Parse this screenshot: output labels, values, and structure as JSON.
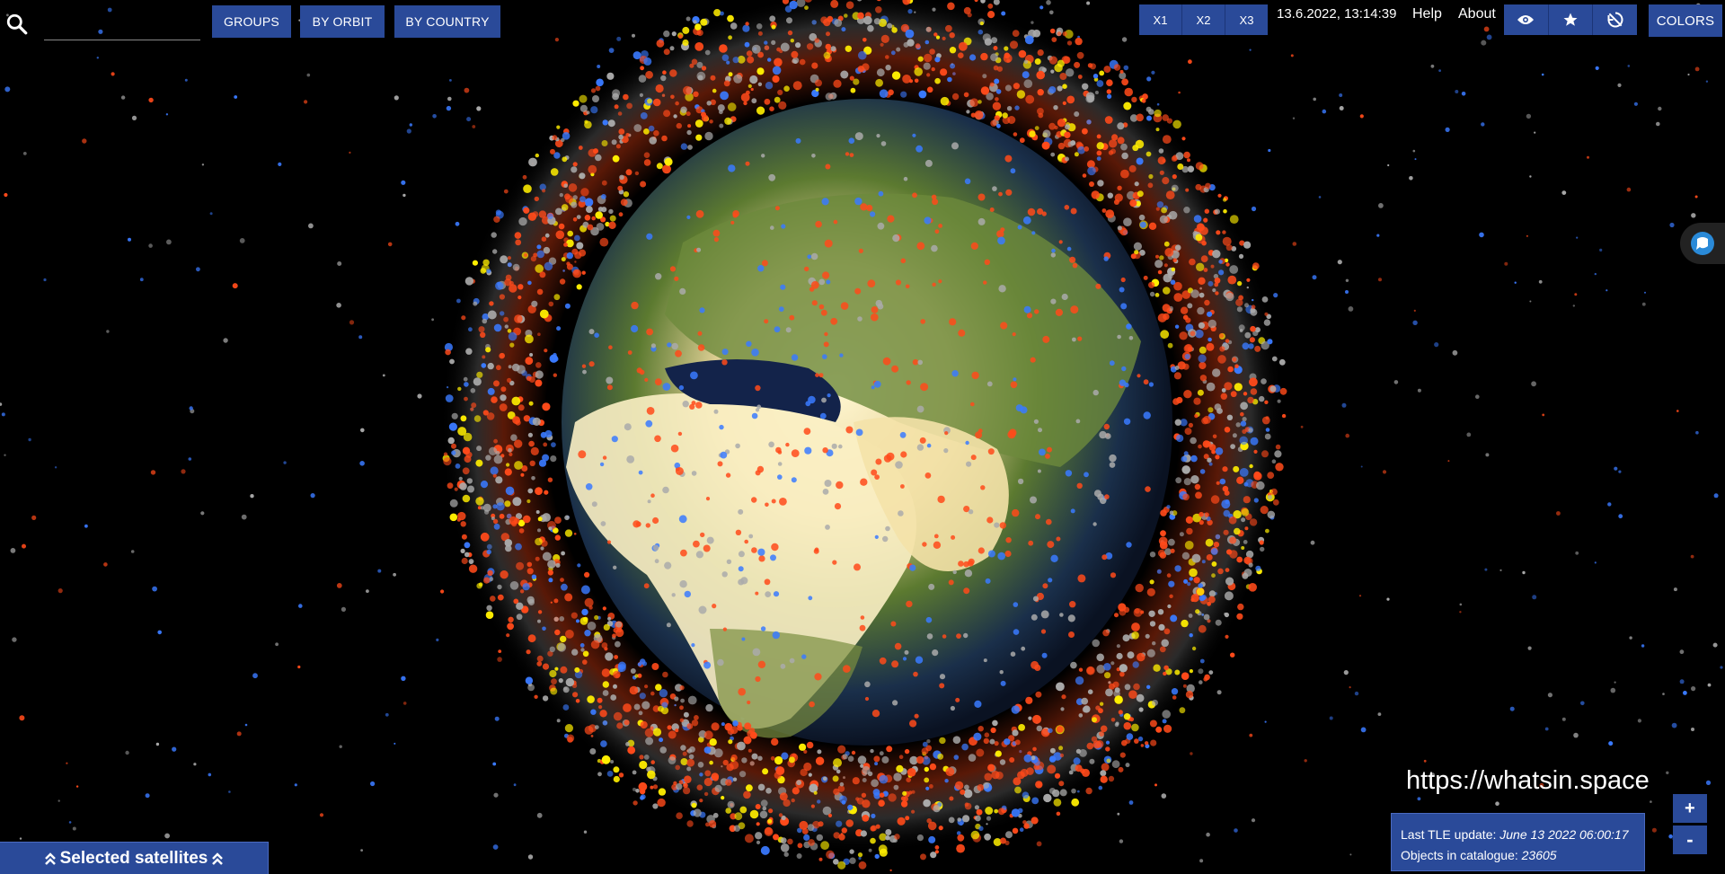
{
  "search": {
    "placeholder": "",
    "value": ""
  },
  "toolbar": {
    "groups_label": "GROUPS",
    "by_orbit_label": "BY ORBIT",
    "by_country_label": "BY COUNTRY",
    "speed_options": [
      "X1",
      "X2",
      "X3"
    ],
    "datetime": "13.6.2022, 13:14:39",
    "help_label": "Help",
    "about_label": "About",
    "colors_label": "COLORS",
    "view_icons": [
      "eye-icon",
      "star-icon",
      "no-rotate-icon"
    ]
  },
  "watermark": "https://whatsin.space",
  "info": {
    "tle_label": "Last TLE update:",
    "tle_value": "June 13 2022 06:00:17",
    "objects_label": "Objects in catalogue:",
    "objects_value": "23605"
  },
  "zoom": {
    "in_label": "+",
    "out_label": "-"
  },
  "selected_bar": {
    "label": "Selected satellites"
  },
  "colors": {
    "accent": "#2a4a99",
    "debris": "#ff4a1a",
    "payload": "#3a7aff",
    "rocket_body": "#ffee00",
    "unknown": "#aaaaaa"
  }
}
